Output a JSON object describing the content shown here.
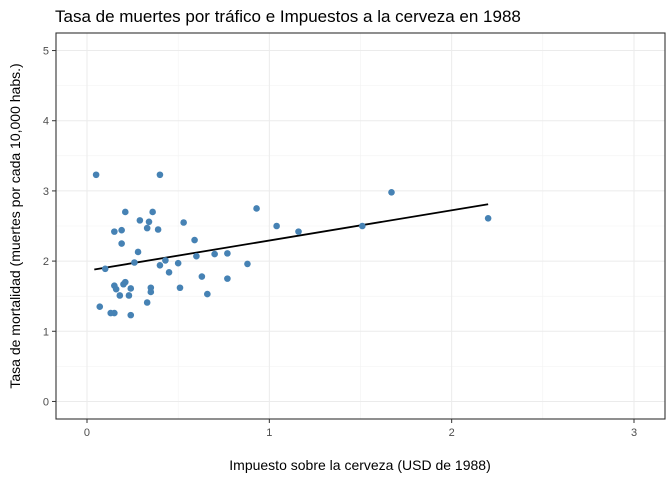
{
  "chart_data": {
    "type": "scatter",
    "title": "Tasa de muertes por tráfico e Impuestos a la cerveza en 1988",
    "xlabel": "Impuesto sobre la cerveza (USD de 1988)",
    "ylabel": "Tasa de mortalidad (muertes por cada 10,000 habs.)",
    "xlim": [
      -0.17,
      3.17
    ],
    "ylim": [
      -0.25,
      5.25
    ],
    "x_ticks": [
      0,
      1,
      2,
      3
    ],
    "y_ticks": [
      0,
      1,
      2,
      3,
      4,
      5
    ],
    "x_tick_labels": [
      "0",
      "1",
      "2",
      "3"
    ],
    "y_tick_labels": [
      "0",
      "1",
      "2",
      "3",
      "4",
      "5"
    ],
    "grid": true,
    "point_color": "#4682B4",
    "line_color": "#000000",
    "points": [
      {
        "x": 0.05,
        "y": 3.23
      },
      {
        "x": 0.07,
        "y": 1.35
      },
      {
        "x": 0.1,
        "y": 1.89
      },
      {
        "x": 0.13,
        "y": 1.26
      },
      {
        "x": 0.15,
        "y": 1.26
      },
      {
        "x": 0.15,
        "y": 1.65
      },
      {
        "x": 0.15,
        "y": 2.42
      },
      {
        "x": 0.16,
        "y": 1.6
      },
      {
        "x": 0.18,
        "y": 1.51
      },
      {
        "x": 0.19,
        "y": 2.25
      },
      {
        "x": 0.19,
        "y": 2.44
      },
      {
        "x": 0.2,
        "y": 1.67
      },
      {
        "x": 0.21,
        "y": 1.7
      },
      {
        "x": 0.21,
        "y": 2.7
      },
      {
        "x": 0.23,
        "y": 1.51
      },
      {
        "x": 0.24,
        "y": 1.23
      },
      {
        "x": 0.24,
        "y": 1.61
      },
      {
        "x": 0.26,
        "y": 1.98
      },
      {
        "x": 0.28,
        "y": 2.13
      },
      {
        "x": 0.29,
        "y": 2.58
      },
      {
        "x": 0.33,
        "y": 1.41
      },
      {
        "x": 0.33,
        "y": 2.47
      },
      {
        "x": 0.34,
        "y": 2.56
      },
      {
        "x": 0.35,
        "y": 1.56
      },
      {
        "x": 0.35,
        "y": 1.62
      },
      {
        "x": 0.36,
        "y": 2.7
      },
      {
        "x": 0.39,
        "y": 2.45
      },
      {
        "x": 0.4,
        "y": 3.23
      },
      {
        "x": 0.4,
        "y": 1.94
      },
      {
        "x": 0.43,
        "y": 2.01
      },
      {
        "x": 0.45,
        "y": 1.84
      },
      {
        "x": 0.5,
        "y": 1.97
      },
      {
        "x": 0.51,
        "y": 1.62
      },
      {
        "x": 0.53,
        "y": 2.55
      },
      {
        "x": 0.59,
        "y": 2.3
      },
      {
        "x": 0.6,
        "y": 2.07
      },
      {
        "x": 0.63,
        "y": 1.78
      },
      {
        "x": 0.66,
        "y": 1.53
      },
      {
        "x": 0.7,
        "y": 2.1
      },
      {
        "x": 0.77,
        "y": 1.75
      },
      {
        "x": 0.77,
        "y": 2.11
      },
      {
        "x": 0.88,
        "y": 1.96
      },
      {
        "x": 0.93,
        "y": 2.75
      },
      {
        "x": 1.04,
        "y": 2.5
      },
      {
        "x": 1.16,
        "y": 2.42
      },
      {
        "x": 1.51,
        "y": 2.5
      },
      {
        "x": 1.67,
        "y": 2.98
      },
      {
        "x": 2.2,
        "y": 2.61
      }
    ],
    "fit_line": {
      "x": [
        0.04,
        2.2
      ],
      "y": [
        1.88,
        2.81
      ]
    }
  }
}
